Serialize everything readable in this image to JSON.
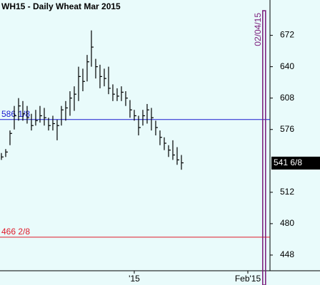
{
  "chart_data": {
    "type": "hlc",
    "title": "WH15 - Daily  Wheat Mar 2015",
    "high": [
      552,
      556,
      575,
      600,
      608,
      605,
      600,
      592,
      596,
      600,
      598,
      588,
      590,
      586,
      600,
      605,
      615,
      620,
      640,
      638,
      652,
      677,
      648,
      642,
      638,
      640,
      622,
      618,
      620,
      615,
      606,
      596,
      590,
      596,
      602,
      598,
      585,
      575,
      568,
      560,
      565,
      558,
      550
    ],
    "low": [
      545,
      548,
      560,
      576,
      585,
      585,
      582,
      575,
      580,
      583,
      580,
      575,
      575,
      565,
      580,
      585,
      590,
      595,
      605,
      615,
      625,
      640,
      628,
      618,
      620,
      612,
      605,
      605,
      605,
      600,
      588,
      585,
      570,
      580,
      582,
      575,
      570,
      560,
      555,
      548,
      545,
      540,
      535
    ],
    "close": [
      548,
      553,
      572,
      590,
      600,
      592,
      588,
      580,
      585,
      590,
      588,
      580,
      582,
      580,
      596,
      598,
      608,
      612,
      630,
      625,
      645,
      660,
      640,
      630,
      628,
      618,
      612,
      610,
      614,
      608,
      596,
      590,
      578,
      590,
      596,
      588,
      578,
      568,
      562,
      555,
      550,
      545,
      542
    ],
    "color": "#000000",
    "xlim": [
      -0.33,
      62.67
    ],
    "xticks": [
      {
        "value": 31,
        "label": "'15"
      },
      {
        "value": 57.5,
        "label": "Feb'15"
      }
    ],
    "ylim": [
      432,
      708
    ],
    "yticks": [
      448,
      480,
      512,
      576,
      608,
      640,
      672
    ],
    "hlines": [
      {
        "value": 586.125,
        "label": "586 1/8",
        "color": "#1a1ad0"
      },
      {
        "value": 466.25,
        "label": "466 2/8",
        "color": "#e01a2a"
      }
    ],
    "vline": {
      "value": 61.3,
      "label": "02/04/15",
      "color": "#7a1a7a"
    },
    "last": {
      "value": 541.75,
      "label": "541 6/8"
    }
  }
}
